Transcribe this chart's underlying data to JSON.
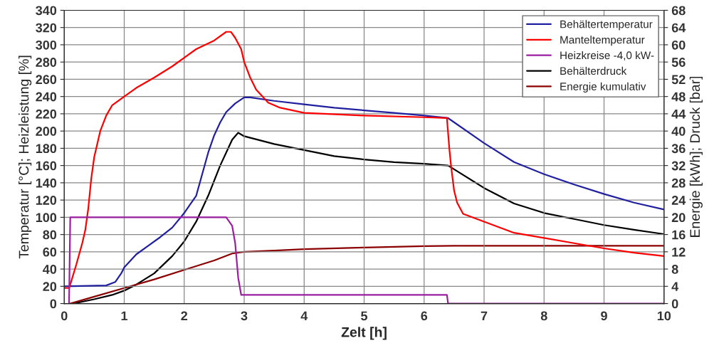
{
  "chart_data": {
    "type": "line",
    "xlabel": "Zelt [h]",
    "ylabel": "Temperatur [°C]; Heizleistung [%]",
    "y2label": "Energie [kWh]; Druck [bar]",
    "xlim": [
      0,
      10
    ],
    "xticks": [
      0,
      1,
      2,
      3,
      4,
      5,
      6,
      7,
      8,
      9,
      10
    ],
    "ylim": [
      0,
      340
    ],
    "yticks": [
      0,
      20,
      40,
      60,
      80,
      100,
      120,
      140,
      160,
      180,
      200,
      220,
      240,
      260,
      280,
      300,
      320,
      340
    ],
    "y2lim": [
      0,
      68
    ],
    "y2ticks": [
      0,
      4,
      8,
      12,
      16,
      20,
      24,
      28,
      32,
      36,
      40,
      44,
      48,
      52,
      56,
      60,
      64,
      68
    ],
    "grid": true,
    "legend": "top right",
    "line_style": "solid",
    "marker": "none",
    "series": [
      {
        "name": "Behältertemperatur",
        "color": "#2020a0",
        "x": [
          0,
          0.7,
          0.85,
          0.95,
          1.0,
          1.2,
          1.4,
          1.6,
          1.8,
          2.0,
          2.1,
          2.2,
          2.3,
          2.4,
          2.5,
          2.6,
          2.7,
          2.85,
          3.0,
          3.1,
          3.5,
          4,
          4.5,
          5,
          5.5,
          6,
          6.4,
          7,
          7.5,
          8,
          8.5,
          9,
          9.5,
          10
        ],
        "values": [
          20,
          21,
          25,
          35,
          42,
          57,
          67,
          77,
          88,
          105,
          115,
          125,
          150,
          175,
          195,
          210,
          222,
          232,
          239,
          239,
          235,
          231,
          227,
          224,
          221,
          218,
          215,
          186,
          164,
          150,
          138,
          127,
          117,
          109
        ]
      },
      {
        "name": "Manteltemperatur",
        "color": "#ff0000",
        "x": [
          0,
          0.08,
          0.1,
          0.2,
          0.3,
          0.35,
          0.4,
          0.45,
          0.5,
          0.6,
          0.7,
          0.8,
          1.0,
          1.2,
          1.5,
          1.8,
          2.0,
          2.2,
          2.5,
          2.7,
          2.78,
          2.85,
          2.95,
          3.0,
          3.1,
          3.2,
          3.4,
          3.6,
          4,
          5,
          6,
          6.38,
          6.42,
          6.45,
          6.5,
          6.55,
          6.65,
          7,
          7.5,
          8,
          8.5,
          9,
          9.5,
          10
        ],
        "values": [
          18,
          18,
          22,
          45,
          70,
          85,
          110,
          145,
          170,
          200,
          218,
          230,
          240,
          250,
          262,
          275,
          285,
          295,
          305,
          315,
          315,
          308,
          295,
          280,
          262,
          248,
          233,
          227,
          221,
          218,
          216,
          215,
          180,
          159,
          131,
          117,
          104,
          95,
          82,
          76,
          70,
          64,
          59,
          55
        ]
      },
      {
        "name": "Heizkreise -4,0 kW-",
        "color": "#9b1fa0",
        "x": [
          0.08,
          0.1,
          2.7,
          2.8,
          2.85,
          2.9,
          2.95,
          6.38,
          6.4,
          10
        ],
        "values": [
          0,
          100,
          100,
          90,
          70,
          30,
          10,
          10,
          0,
          0
        ]
      },
      {
        "name": "Behälterdruck",
        "color": "#000000",
        "axis": "y2",
        "x": [
          0.15,
          0.5,
          0.8,
          1.0,
          1.2,
          1.5,
          1.8,
          2.0,
          2.2,
          2.4,
          2.6,
          2.8,
          2.9,
          3.0,
          3.5,
          4,
          4.5,
          5,
          5.5,
          6,
          6.4,
          7,
          7.5,
          8,
          8.5,
          9,
          9.5,
          10
        ],
        "values": [
          0,
          1,
          2,
          3,
          4.4,
          7,
          11,
          14.4,
          19,
          25,
          32,
          38,
          39.6,
          38.8,
          37,
          35.6,
          34.2,
          33.4,
          32.8,
          32.4,
          32,
          26.8,
          23.2,
          21,
          19.6,
          18.2,
          17.1,
          16.1
        ]
      },
      {
        "name": "Energie kumulativ",
        "color": "#8b0000",
        "axis": "y2",
        "x": [
          0.1,
          0.5,
          1,
          1.5,
          2,
          2.5,
          2.8,
          3,
          3.5,
          4,
          5,
          6,
          6.5,
          10
        ],
        "values": [
          0,
          1.6,
          3.6,
          5.6,
          7.8,
          10,
          11.6,
          12,
          12.3,
          12.6,
          13.0,
          13.3,
          13.4,
          13.4
        ]
      }
    ]
  }
}
